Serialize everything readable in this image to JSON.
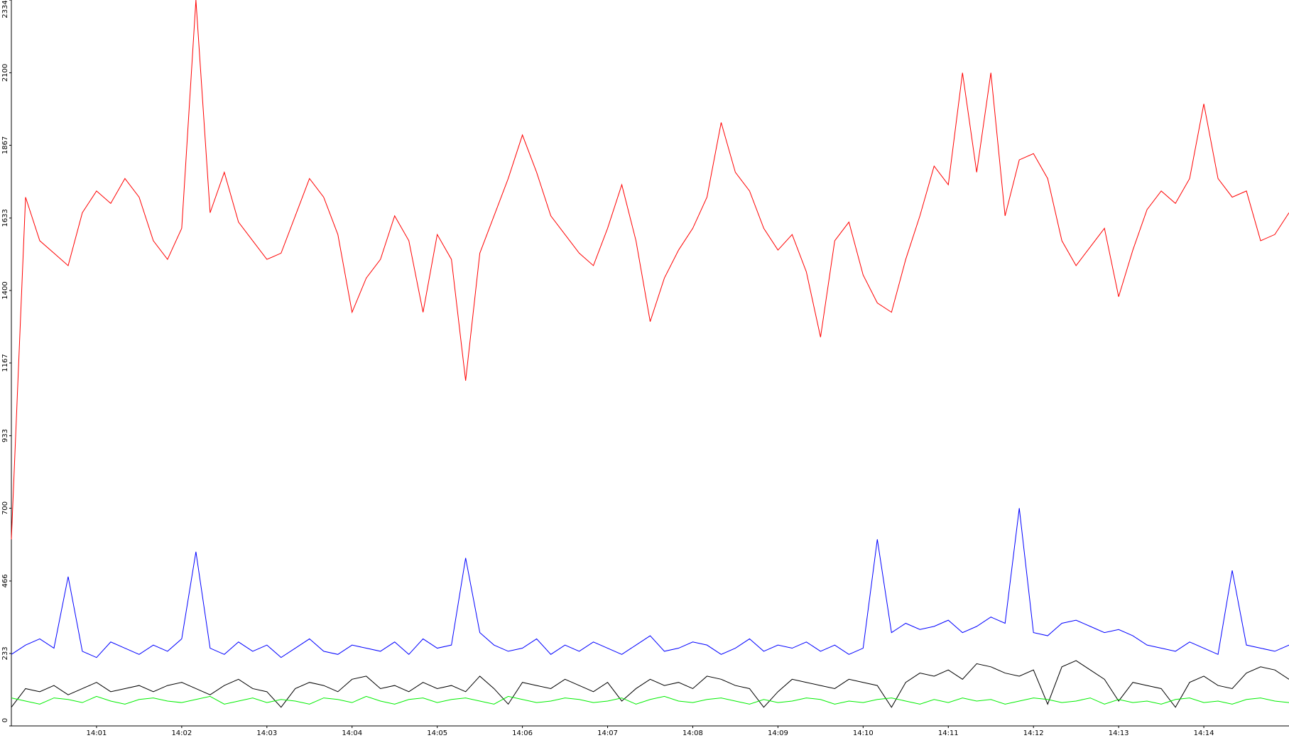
{
  "chart_data": {
    "type": "line",
    "x": [
      0,
      10,
      20,
      30,
      40,
      50,
      60,
      70,
      80,
      90,
      100,
      110,
      120,
      130,
      140,
      150,
      160,
      170,
      180,
      190,
      200,
      210,
      220,
      230,
      240,
      250,
      260,
      270,
      280,
      290,
      300,
      310,
      320,
      330,
      340,
      350,
      360,
      370,
      380,
      390,
      400,
      410,
      420,
      430,
      440,
      450,
      460,
      470,
      480,
      490,
      500,
      510,
      520,
      530,
      540,
      550,
      560,
      570,
      580,
      590,
      600,
      610,
      620,
      630,
      640,
      650,
      660,
      670,
      680,
      690,
      700,
      710,
      720,
      730,
      740,
      750,
      760,
      770,
      780,
      790,
      800,
      810,
      820,
      830,
      840,
      850,
      860,
      870,
      880,
      890,
      900
    ],
    "xlim": [
      0,
      900
    ],
    "xticks": [
      {
        "value": 60,
        "label": "14:01"
      },
      {
        "value": 120,
        "label": "14:02"
      },
      {
        "value": 180,
        "label": "14:03"
      },
      {
        "value": 240,
        "label": "14:04"
      },
      {
        "value": 300,
        "label": "14:05"
      },
      {
        "value": 360,
        "label": "14:06"
      },
      {
        "value": 420,
        "label": "14:07"
      },
      {
        "value": 480,
        "label": "14:08"
      },
      {
        "value": 540,
        "label": "14:09"
      },
      {
        "value": 600,
        "label": "14:10"
      },
      {
        "value": 660,
        "label": "14:11"
      },
      {
        "value": 720,
        "label": "14:12"
      },
      {
        "value": 780,
        "label": "14:13"
      },
      {
        "value": 840,
        "label": "14:14"
      }
    ],
    "ylim": [
      0,
      2334
    ],
    "yticks": [
      0,
      233,
      466,
      700,
      933,
      1167,
      1400,
      1633,
      1867,
      2100,
      2334
    ],
    "series": [
      {
        "color": "#ff0000",
        "values": [
          600,
          1700,
          1560,
          1520,
          1480,
          1650,
          1720,
          1680,
          1760,
          1700,
          1560,
          1500,
          1600,
          2334,
          1650,
          1780,
          1620,
          1560,
          1500,
          1520,
          1640,
          1760,
          1700,
          1580,
          1330,
          1440,
          1500,
          1640,
          1560,
          1330,
          1580,
          1500,
          1110,
          1520,
          1640,
          1760,
          1900,
          1780,
          1640,
          1580,
          1520,
          1480,
          1600,
          1740,
          1560,
          1300,
          1440,
          1530,
          1600,
          1700,
          1940,
          1780,
          1720,
          1600,
          1530,
          1580,
          1460,
          1250,
          1560,
          1620,
          1450,
          1360,
          1330,
          1500,
          1640,
          1800,
          1740,
          2100,
          1780,
          2100,
          1640,
          1820,
          1840,
          1760,
          1560,
          1480,
          1540,
          1600,
          1380,
          1530,
          1660,
          1720,
          1680,
          1760,
          2000,
          1760,
          1700,
          1720,
          1560,
          1580,
          1650
        ]
      },
      {
        "color": "#0000ff",
        "values": [
          230,
          260,
          280,
          250,
          480,
          240,
          220,
          270,
          250,
          230,
          260,
          240,
          280,
          560,
          250,
          230,
          270,
          240,
          260,
          220,
          250,
          280,
          240,
          230,
          260,
          250,
          240,
          270,
          230,
          280,
          250,
          260,
          540,
          300,
          260,
          240,
          250,
          280,
          230,
          260,
          240,
          270,
          250,
          230,
          260,
          290,
          240,
          250,
          270,
          260,
          230,
          250,
          280,
          240,
          260,
          250,
          270,
          240,
          260,
          230,
          250,
          600,
          300,
          330,
          310,
          320,
          340,
          300,
          320,
          350,
          330,
          700,
          300,
          290,
          330,
          340,
          320,
          300,
          310,
          290,
          260,
          250,
          240,
          270,
          250,
          230,
          500,
          260,
          250,
          240,
          260
        ]
      },
      {
        "color": "#000000",
        "values": [
          60,
          120,
          110,
          130,
          100,
          120,
          140,
          110,
          120,
          130,
          110,
          130,
          140,
          120,
          100,
          130,
          150,
          120,
          110,
          60,
          120,
          140,
          130,
          110,
          150,
          160,
          120,
          130,
          110,
          140,
          120,
          130,
          110,
          160,
          120,
          70,
          140,
          130,
          120,
          150,
          130,
          110,
          140,
          80,
          120,
          150,
          130,
          140,
          120,
          160,
          150,
          130,
          120,
          60,
          110,
          150,
          140,
          130,
          120,
          150,
          140,
          130,
          60,
          140,
          170,
          160,
          180,
          150,
          200,
          190,
          170,
          160,
          180,
          70,
          190,
          210,
          180,
          150,
          80,
          140,
          130,
          120,
          60,
          140,
          160,
          130,
          120,
          170,
          190,
          180,
          150
        ]
      },
      {
        "color": "#00ee00",
        "values": [
          90,
          80,
          70,
          90,
          85,
          75,
          95,
          80,
          70,
          85,
          90,
          80,
          75,
          85,
          95,
          70,
          80,
          90,
          75,
          85,
          80,
          70,
          90,
          85,
          75,
          95,
          80,
          70,
          85,
          90,
          75,
          85,
          90,
          80,
          70,
          95,
          85,
          75,
          80,
          90,
          85,
          75,
          80,
          90,
          70,
          85,
          95,
          80,
          75,
          85,
          90,
          80,
          70,
          85,
          75,
          80,
          90,
          85,
          70,
          80,
          75,
          85,
          90,
          80,
          70,
          85,
          75,
          90,
          80,
          85,
          70,
          80,
          90,
          85,
          75,
          80,
          90,
          70,
          85,
          75,
          80,
          70,
          85,
          90,
          75,
          80,
          70,
          85,
          90,
          80,
          75
        ]
      }
    ]
  }
}
